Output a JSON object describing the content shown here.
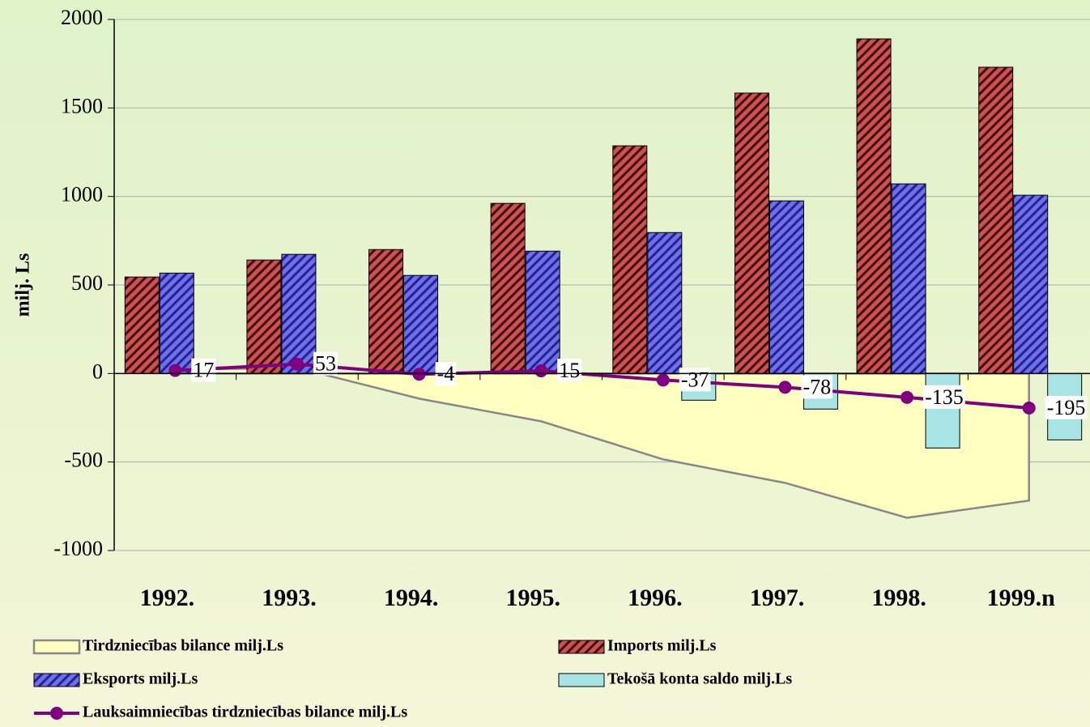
{
  "chart_data": {
    "type": "bar",
    "ylabel": "milj. Ls",
    "categories": [
      "1992.",
      "1993.",
      "1994.",
      "1995.",
      "1996.",
      "1997.",
      "1998.",
      "1999.n"
    ],
    "ylim": [
      -1000,
      2000
    ],
    "yticks": [
      -1000,
      -500,
      0,
      500,
      1000,
      1500,
      2000
    ],
    "grid": true,
    "series": [
      {
        "name": "Tirdzniecības bilance  milj.Ls",
        "type": "area",
        "color": "#ffffc0",
        "values": [
          22,
          32,
          -142,
          -270,
          -485,
          -618,
          -815,
          -718
        ]
      },
      {
        "name": "Imports milj.Ls",
        "type": "bar",
        "color": "#d05050",
        "values": [
          545,
          641,
          700,
          961,
          1286,
          1584,
          1890,
          1730
        ]
      },
      {
        "name": "Eksports milj.Ls",
        "type": "bar",
        "color": "#7070e0",
        "values": [
          567,
          673,
          554,
          691,
          796,
          975,
          1071,
          1007
        ]
      },
      {
        "name": "Tekošā konta saldo  milj.Ls",
        "type": "bar",
        "color": "#a8e4e4",
        "values": [
          null,
          null,
          null,
          null,
          -151,
          -201,
          -421,
          -375
        ]
      },
      {
        "name": "Lauksaimniecības tirdzniecības bilance  milj.Ls",
        "type": "line",
        "color": "#800080",
        "values": [
          17,
          53,
          -4,
          15,
          -37,
          -78,
          -135,
          -195
        ]
      }
    ]
  }
}
